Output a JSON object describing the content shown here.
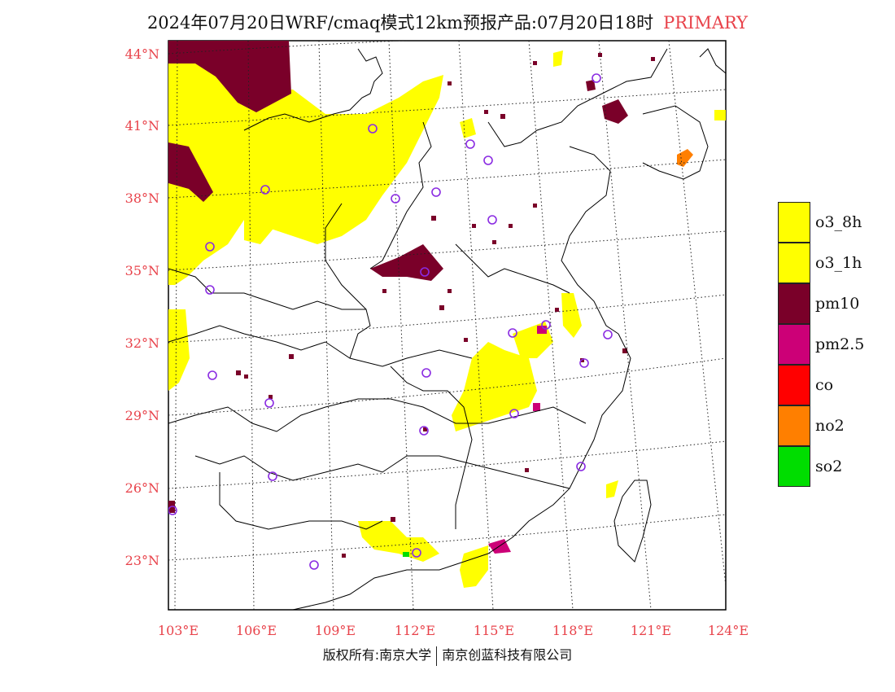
{
  "title": "2024年07月20日WRF/cmaq模式12km预报产品:07月20日18时",
  "title_tag": "PRIMARY",
  "lat_labels": [
    "44°N",
    "41°N",
    "38°N",
    "35°N",
    "32°N",
    "29°N",
    "26°N",
    "23°N"
  ],
  "lon_labels": [
    "103°E",
    "106°E",
    "109°E",
    "112°E",
    "115°E",
    "118°E",
    "121°E",
    "124°E"
  ],
  "legend": [
    {
      "label": "o3_8h",
      "color": "#ffff00"
    },
    {
      "label": "o3_1h",
      "color": "#ffff00"
    },
    {
      "label": "pm10",
      "color": "#7a0029"
    },
    {
      "label": "pm2.5",
      "color": "#cc0077"
    },
    {
      "label": "co",
      "color": "#ff0000"
    },
    {
      "label": "no2",
      "color": "#ff7f00"
    },
    {
      "label": "so2",
      "color": "#00dd00"
    }
  ],
  "footer": {
    "left": "版权所有:南京大学",
    "right": "南京创蓝科技有限公司"
  },
  "colors": {
    "axis_label": "#e8424a",
    "station_marker": "#8a2be2"
  }
}
